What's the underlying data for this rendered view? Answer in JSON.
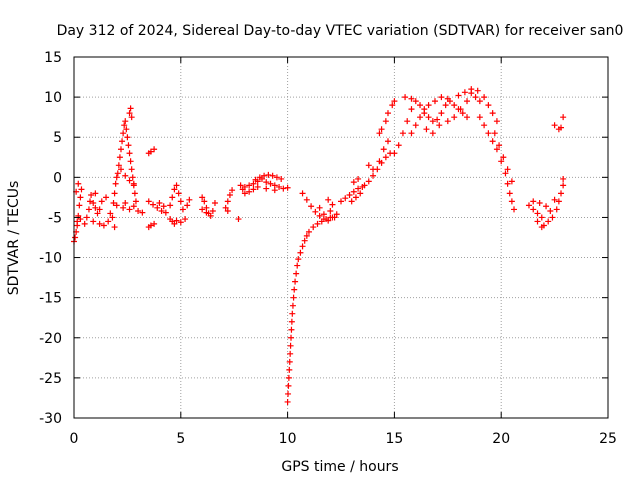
{
  "chart_data": {
    "type": "scatter",
    "title": "Day 312 of 2024, Sidereal Day-to-day VTEC variation (SDTVAR) for receiver san0",
    "xlabel": "GPS time / hours",
    "ylabel": "SDTVAR / TECUs",
    "xlim": [
      0,
      25
    ],
    "ylim": [
      -30,
      15
    ],
    "xticks": [
      "0",
      "5",
      "10",
      "15",
      "20",
      "25"
    ],
    "yticks": [
      "15",
      "10",
      "5",
      "0",
      "-5",
      "-10",
      "-15",
      "-20",
      "-25",
      "-30"
    ],
    "grid": true,
    "marker": "+",
    "color": "#ff0000",
    "series": [
      {
        "name": "san0",
        "points": [
          [
            0.0,
            -8.0
          ],
          [
            0.05,
            -7.5
          ],
          [
            0.1,
            -6.8
          ],
          [
            0.15,
            -5.5
          ],
          [
            0.2,
            -4.8
          ],
          [
            0.25,
            -3.5
          ],
          [
            0.3,
            -2.5
          ],
          [
            0.35,
            -1.5
          ],
          [
            0.1,
            -1.8
          ],
          [
            0.2,
            -0.8
          ],
          [
            0.15,
            -6.0
          ],
          [
            0.3,
            -5.2
          ],
          [
            0.5,
            -5.8
          ],
          [
            0.6,
            -5.0
          ],
          [
            0.7,
            -4.0
          ],
          [
            0.75,
            -3.0
          ],
          [
            0.8,
            -2.2
          ],
          [
            0.9,
            -3.2
          ],
          [
            1.0,
            -3.8
          ],
          [
            1.1,
            -4.5
          ],
          [
            1.2,
            -4.0
          ],
          [
            1.3,
            -3.0
          ],
          [
            1.0,
            -2.0
          ],
          [
            0.9,
            -5.5
          ],
          [
            1.2,
            -5.8
          ],
          [
            1.4,
            -6.0
          ],
          [
            1.6,
            -5.5
          ],
          [
            1.7,
            -4.5
          ],
          [
            1.5,
            -2.5
          ],
          [
            1.8,
            -5.0
          ],
          [
            1.9,
            -6.2
          ],
          [
            1.85,
            -3.2
          ],
          [
            1.9,
            -2.0
          ],
          [
            1.95,
            -0.8
          ],
          [
            2.0,
            0.0
          ],
          [
            2.05,
            0.5
          ],
          [
            2.1,
            1.5
          ],
          [
            2.15,
            2.5
          ],
          [
            2.2,
            3.5
          ],
          [
            2.25,
            4.5
          ],
          [
            2.3,
            5.5
          ],
          [
            2.35,
            6.5
          ],
          [
            2.4,
            7.0
          ],
          [
            2.45,
            6.0
          ],
          [
            2.5,
            5.0
          ],
          [
            2.55,
            4.0
          ],
          [
            2.6,
            3.0
          ],
          [
            2.65,
            2.0
          ],
          [
            2.7,
            1.0
          ],
          [
            2.75,
            0.0
          ],
          [
            2.8,
            -1.0
          ],
          [
            2.85,
            -2.0
          ],
          [
            2.9,
            -3.0
          ],
          [
            2.6,
            8.0
          ],
          [
            2.65,
            8.6
          ],
          [
            2.7,
            7.5
          ],
          [
            2.2,
            1.0
          ],
          [
            2.4,
            0.2
          ],
          [
            2.6,
            -0.4
          ],
          [
            2.8,
            -0.8
          ],
          [
            2.0,
            -3.5
          ],
          [
            2.3,
            -3.8
          ],
          [
            2.6,
            -4.0
          ],
          [
            3.0,
            -4.2
          ],
          [
            3.2,
            -4.4
          ],
          [
            2.4,
            -3.2
          ],
          [
            2.8,
            -3.6
          ],
          [
            3.5,
            -6.2
          ],
          [
            3.6,
            -6.0
          ],
          [
            3.75,
            -5.8
          ],
          [
            3.5,
            3.0
          ],
          [
            3.6,
            3.2
          ],
          [
            3.75,
            3.5
          ],
          [
            3.5,
            -3.0
          ],
          [
            3.7,
            -3.4
          ],
          [
            3.9,
            -3.8
          ],
          [
            4.1,
            -4.2
          ],
          [
            4.3,
            -4.4
          ],
          [
            4.0,
            -3.2
          ],
          [
            4.2,
            -3.6
          ],
          [
            4.5,
            -5.2
          ],
          [
            4.6,
            -5.5
          ],
          [
            4.7,
            -5.8
          ],
          [
            4.8,
            -5.4
          ],
          [
            5.0,
            -5.6
          ],
          [
            5.2,
            -5.2
          ],
          [
            4.5,
            -3.5
          ],
          [
            4.6,
            -2.5
          ],
          [
            4.7,
            -1.5
          ],
          [
            4.8,
            -1.0
          ],
          [
            4.9,
            -2.0
          ],
          [
            5.0,
            -3.0
          ],
          [
            5.1,
            -4.0
          ],
          [
            5.3,
            -3.5
          ],
          [
            5.4,
            -2.8
          ],
          [
            6.0,
            -2.5
          ],
          [
            6.1,
            -3.0
          ],
          [
            6.2,
            -3.8
          ],
          [
            6.3,
            -4.5
          ],
          [
            6.4,
            -4.8
          ],
          [
            6.5,
            -4.2
          ],
          [
            6.6,
            -3.2
          ],
          [
            6.0,
            -4.0
          ],
          [
            6.2,
            -4.4
          ],
          [
            7.1,
            -3.8
          ],
          [
            7.2,
            -3.0
          ],
          [
            7.3,
            -2.2
          ],
          [
            7.4,
            -1.6
          ],
          [
            7.2,
            -4.2
          ],
          [
            7.8,
            -1.0
          ],
          [
            7.9,
            -1.5
          ],
          [
            7.7,
            -5.2
          ],
          [
            8.0,
            -1.2
          ],
          [
            8.2,
            -1.0
          ],
          [
            8.4,
            -0.8
          ],
          [
            8.6,
            -0.5
          ],
          [
            8.8,
            -0.2
          ],
          [
            9.0,
            -0.6
          ],
          [
            9.2,
            -0.8
          ],
          [
            9.4,
            -1.0
          ],
          [
            9.6,
            -1.2
          ],
          [
            9.8,
            -1.4
          ],
          [
            10.0,
            -1.3
          ],
          [
            8.2,
            -1.8
          ],
          [
            8.4,
            -1.5
          ],
          [
            8.5,
            -0.3
          ],
          [
            8.7,
            0.0
          ],
          [
            8.9,
            0.2
          ],
          [
            9.1,
            0.3
          ],
          [
            9.3,
            0.2
          ],
          [
            9.5,
            0.0
          ],
          [
            9.7,
            -0.2
          ],
          [
            8.0,
            -2.0
          ],
          [
            8.6,
            -1.2
          ],
          [
            9.0,
            -1.4
          ],
          [
            9.4,
            -1.6
          ],
          [
            10.0,
            -28.0
          ],
          [
            10.02,
            -27.0
          ],
          [
            10.04,
            -26.0
          ],
          [
            10.06,
            -25.0
          ],
          [
            10.08,
            -24.0
          ],
          [
            10.1,
            -23.0
          ],
          [
            10.12,
            -22.0
          ],
          [
            10.14,
            -21.0
          ],
          [
            10.16,
            -20.0
          ],
          [
            10.18,
            -19.0
          ],
          [
            10.2,
            -18.0
          ],
          [
            10.22,
            -17.0
          ],
          [
            10.25,
            -16.0
          ],
          [
            10.28,
            -15.0
          ],
          [
            10.31,
            -14.0
          ],
          [
            10.35,
            -13.0
          ],
          [
            10.4,
            -12.0
          ],
          [
            10.45,
            -11.0
          ],
          [
            10.5,
            -10.2
          ],
          [
            10.6,
            -9.4
          ],
          [
            10.7,
            -8.6
          ],
          [
            10.8,
            -7.9
          ],
          [
            10.9,
            -7.3
          ],
          [
            11.0,
            -6.8
          ],
          [
            11.2,
            -6.2
          ],
          [
            11.4,
            -5.8
          ],
          [
            11.6,
            -5.5
          ],
          [
            11.8,
            -5.2
          ],
          [
            12.0,
            -5.0
          ],
          [
            12.2,
            -5.0
          ],
          [
            10.7,
            -2.0
          ],
          [
            10.9,
            -2.8
          ],
          [
            11.1,
            -3.6
          ],
          [
            11.3,
            -4.3
          ],
          [
            11.5,
            -4.8
          ],
          [
            11.7,
            -5.2
          ],
          [
            11.9,
            -5.4
          ],
          [
            12.1,
            -5.0
          ],
          [
            12.3,
            -4.6
          ],
          [
            11.5,
            -3.8
          ],
          [
            11.7,
            -4.6
          ],
          [
            12.0,
            -4.2
          ],
          [
            11.9,
            -2.8
          ],
          [
            12.1,
            -3.4
          ],
          [
            12.5,
            -3.0
          ],
          [
            12.7,
            -2.6
          ],
          [
            12.9,
            -2.2
          ],
          [
            13.1,
            -1.8
          ],
          [
            13.3,
            -1.4
          ],
          [
            13.5,
            -1.2
          ],
          [
            13.1,
            -0.6
          ],
          [
            13.3,
            -0.2
          ],
          [
            13.0,
            -3.0
          ],
          [
            13.2,
            -2.5
          ],
          [
            13.4,
            -2.0
          ],
          [
            13.6,
            -1.0
          ],
          [
            13.8,
            -0.5
          ],
          [
            14.0,
            0.2
          ],
          [
            14.2,
            1.0
          ],
          [
            14.4,
            1.8
          ],
          [
            14.6,
            2.5
          ],
          [
            14.8,
            3.0
          ],
          [
            13.8,
            1.5
          ],
          [
            14.0,
            1.0
          ],
          [
            14.3,
            2.0
          ],
          [
            14.5,
            3.5
          ],
          [
            14.7,
            4.5
          ],
          [
            14.6,
            7.0
          ],
          [
            14.7,
            8.0
          ],
          [
            14.9,
            9.0
          ],
          [
            15.0,
            9.5
          ],
          [
            14.3,
            5.5
          ],
          [
            14.4,
            6.0
          ],
          [
            15.0,
            3.0
          ],
          [
            15.2,
            4.0
          ],
          [
            15.4,
            5.5
          ],
          [
            15.6,
            7.0
          ],
          [
            15.8,
            8.5
          ],
          [
            16.0,
            9.5
          ],
          [
            15.5,
            10.0
          ],
          [
            15.8,
            9.8
          ],
          [
            16.2,
            9.0
          ],
          [
            16.4,
            8.0
          ],
          [
            16.6,
            7.5
          ],
          [
            16.8,
            7.0
          ],
          [
            17.0,
            7.2
          ],
          [
            17.2,
            8.0
          ],
          [
            17.4,
            9.0
          ],
          [
            17.6,
            9.5
          ],
          [
            17.8,
            9.0
          ],
          [
            18.0,
            8.5
          ],
          [
            18.2,
            8.0
          ],
          [
            18.4,
            7.5
          ],
          [
            16.5,
            6.0
          ],
          [
            16.8,
            5.5
          ],
          [
            17.1,
            6.5
          ],
          [
            17.5,
            7.0
          ],
          [
            17.8,
            7.5
          ],
          [
            18.1,
            8.5
          ],
          [
            18.4,
            9.5
          ],
          [
            18.6,
            10.5
          ],
          [
            18.8,
            10.0
          ],
          [
            19.0,
            9.5
          ],
          [
            19.2,
            10.0
          ],
          [
            19.4,
            9.0
          ],
          [
            19.6,
            8.0
          ],
          [
            19.8,
            7.0
          ],
          [
            15.8,
            5.5
          ],
          [
            16.0,
            6.5
          ],
          [
            16.2,
            7.5
          ],
          [
            16.4,
            8.5
          ],
          [
            16.6,
            9.0
          ],
          [
            16.9,
            9.5
          ],
          [
            17.2,
            10.0
          ],
          [
            17.5,
            9.8
          ],
          [
            18.0,
            10.2
          ],
          [
            18.3,
            10.6
          ],
          [
            18.6,
            11.0
          ],
          [
            18.9,
            10.8
          ],
          [
            19.0,
            7.5
          ],
          [
            19.2,
            6.5
          ],
          [
            19.4,
            5.5
          ],
          [
            19.6,
            4.5
          ],
          [
            19.8,
            3.5
          ],
          [
            20.0,
            2.0
          ],
          [
            20.2,
            0.5
          ],
          [
            20.3,
            -0.8
          ],
          [
            20.4,
            -2.0
          ],
          [
            20.5,
            -3.0
          ],
          [
            20.6,
            -4.0
          ],
          [
            19.7,
            5.5
          ],
          [
            19.9,
            4.0
          ],
          [
            20.1,
            2.5
          ],
          [
            20.3,
            1.0
          ],
          [
            20.5,
            -0.5
          ],
          [
            21.3,
            -3.5
          ],
          [
            21.5,
            -4.0
          ],
          [
            21.7,
            -4.5
          ],
          [
            21.9,
            -5.0
          ],
          [
            22.0,
            -6.0
          ],
          [
            22.2,
            -5.5
          ],
          [
            22.4,
            -5.0
          ],
          [
            22.6,
            -4.0
          ],
          [
            22.7,
            -3.0
          ],
          [
            22.8,
            -2.0
          ],
          [
            22.9,
            -1.0
          ],
          [
            22.9,
            -0.2
          ],
          [
            21.5,
            -3.0
          ],
          [
            21.8,
            -3.2
          ],
          [
            22.1,
            -3.6
          ],
          [
            22.3,
            -4.2
          ],
          [
            22.5,
            -2.8
          ],
          [
            21.7,
            -5.5
          ],
          [
            21.9,
            -6.2
          ],
          [
            22.5,
            6.5
          ],
          [
            22.7,
            6.0
          ],
          [
            22.8,
            6.2
          ],
          [
            22.9,
            7.5
          ]
        ]
      }
    ]
  }
}
